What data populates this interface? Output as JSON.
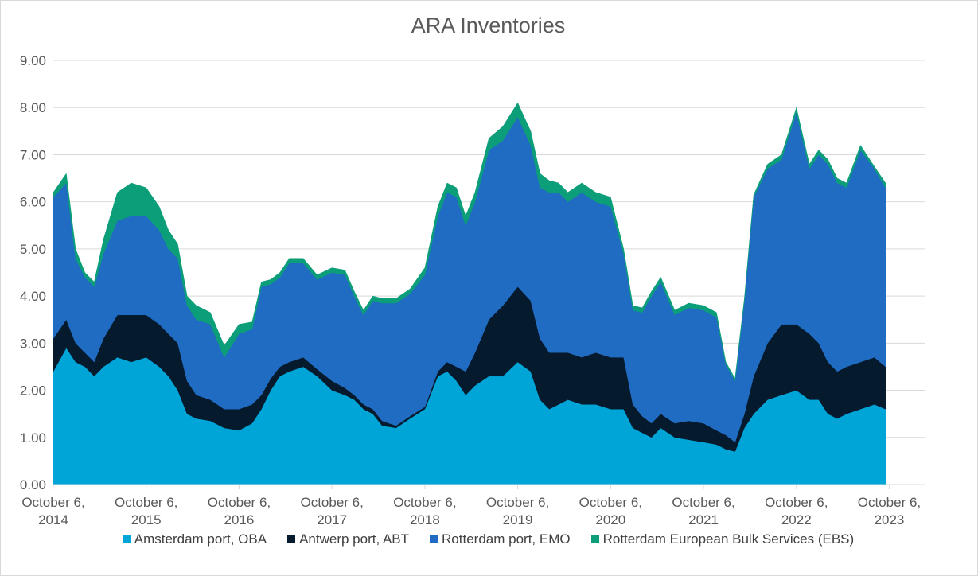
{
  "chart_data": {
    "type": "area",
    "stacked": true,
    "title": "ARA Inventories",
    "xlabel": "",
    "ylabel": "",
    "ylim": [
      0,
      9
    ],
    "yticks": [
      "0.00",
      "1.00",
      "2.00",
      "3.00",
      "4.00",
      "5.00",
      "6.00",
      "7.00",
      "8.00",
      "9.00"
    ],
    "xlim": [
      2014.76,
      2024.15
    ],
    "xticks": [
      {
        "pos": 2014.76,
        "line1": "October 6,",
        "line2": "2014"
      },
      {
        "pos": 2015.76,
        "line1": "October 6,",
        "line2": "2015"
      },
      {
        "pos": 2016.76,
        "line1": "October 6,",
        "line2": "2016"
      },
      {
        "pos": 2017.76,
        "line1": "October 6,",
        "line2": "2017"
      },
      {
        "pos": 2018.76,
        "line1": "October 6,",
        "line2": "2018"
      },
      {
        "pos": 2019.76,
        "line1": "October 6,",
        "line2": "2019"
      },
      {
        "pos": 2020.76,
        "line1": "October 6,",
        "line2": "2020"
      },
      {
        "pos": 2021.76,
        "line1": "October 6,",
        "line2": "2021"
      },
      {
        "pos": 2022.76,
        "line1": "October 6,",
        "line2": "2022"
      },
      {
        "pos": 2023.76,
        "line1": "October 6,",
        "line2": "2023"
      }
    ],
    "grid": true,
    "legend_position": "bottom",
    "x": [
      2014.76,
      2014.9,
      2015.0,
      2015.1,
      2015.2,
      2015.3,
      2015.45,
      2015.6,
      2015.76,
      2015.9,
      2016.0,
      2016.1,
      2016.2,
      2016.3,
      2016.45,
      2016.6,
      2016.76,
      2016.9,
      2017.0,
      2017.1,
      2017.2,
      2017.3,
      2017.45,
      2017.6,
      2017.76,
      2017.9,
      2018.0,
      2018.1,
      2018.2,
      2018.3,
      2018.45,
      2018.6,
      2018.76,
      2018.9,
      2019.0,
      2019.1,
      2019.2,
      2019.3,
      2019.45,
      2019.6,
      2019.76,
      2019.9,
      2020.0,
      2020.1,
      2020.2,
      2020.3,
      2020.45,
      2020.6,
      2020.76,
      2020.9,
      2021.0,
      2021.1,
      2021.2,
      2021.3,
      2021.45,
      2021.6,
      2021.76,
      2021.9,
      2022.0,
      2022.1,
      2022.2,
      2022.3,
      2022.45,
      2022.6,
      2022.76,
      2022.9,
      2023.0,
      2023.1,
      2023.2,
      2023.3,
      2023.45,
      2023.6,
      2023.72
    ],
    "series": [
      {
        "name": "Amsterdam port, OBA",
        "color": "#00a5d8",
        "values": [
          2.4,
          2.9,
          2.6,
          2.5,
          2.3,
          2.5,
          2.7,
          2.6,
          2.7,
          2.5,
          2.3,
          2.0,
          1.5,
          1.4,
          1.35,
          1.2,
          1.15,
          1.3,
          1.6,
          2.0,
          2.3,
          2.4,
          2.5,
          2.3,
          2.0,
          1.9,
          1.8,
          1.6,
          1.5,
          1.25,
          1.2,
          1.4,
          1.6,
          2.3,
          2.4,
          2.2,
          1.9,
          2.1,
          2.3,
          2.3,
          2.6,
          2.4,
          1.8,
          1.6,
          1.7,
          1.8,
          1.7,
          1.7,
          1.6,
          1.6,
          1.2,
          1.1,
          1.0,
          1.2,
          1.0,
          0.95,
          0.9,
          0.85,
          0.75,
          0.7,
          1.2,
          1.5,
          1.8,
          1.9,
          2.0,
          1.8,
          1.8,
          1.5,
          1.4,
          1.5,
          1.6,
          1.7,
          1.6
        ]
      },
      {
        "name": "Antwerp port, ABT",
        "color": "#061a2e",
        "values": [
          0.7,
          0.6,
          0.4,
          0.3,
          0.3,
          0.6,
          0.9,
          1.0,
          0.9,
          0.9,
          0.9,
          1.0,
          0.7,
          0.5,
          0.45,
          0.4,
          0.45,
          0.4,
          0.3,
          0.25,
          0.2,
          0.2,
          0.2,
          0.15,
          0.2,
          0.15,
          0.1,
          0.1,
          0.1,
          0.1,
          0.05,
          0.05,
          0.05,
          0.1,
          0.2,
          0.3,
          0.5,
          0.7,
          1.2,
          1.5,
          1.6,
          1.5,
          1.3,
          1.2,
          1.1,
          1.0,
          1.0,
          1.1,
          1.1,
          1.1,
          0.5,
          0.35,
          0.3,
          0.3,
          0.3,
          0.4,
          0.4,
          0.3,
          0.3,
          0.2,
          0.3,
          0.8,
          1.2,
          1.5,
          1.4,
          1.4,
          1.2,
          1.1,
          1.0,
          1.0,
          1.0,
          1.0,
          0.9
        ]
      },
      {
        "name": "Rotterdam port, EMO",
        "color": "#1f6cc2",
        "values": [
          3.0,
          2.9,
          1.8,
          1.6,
          1.6,
          1.8,
          2.0,
          2.1,
          2.1,
          2.0,
          1.8,
          1.8,
          1.6,
          1.6,
          1.6,
          1.1,
          1.6,
          1.6,
          2.3,
          2.0,
          1.9,
          2.1,
          2.0,
          1.9,
          2.3,
          2.4,
          2.1,
          1.9,
          2.3,
          2.5,
          2.6,
          2.6,
          2.8,
          3.3,
          3.6,
          3.6,
          3.1,
          3.2,
          3.6,
          3.5,
          3.6,
          3.3,
          3.2,
          3.4,
          3.4,
          3.2,
          3.5,
          3.2,
          3.2,
          2.2,
          2.0,
          2.2,
          2.7,
          2.8,
          2.3,
          2.4,
          2.4,
          2.4,
          1.5,
          1.3,
          2.4,
          3.8,
          3.7,
          3.5,
          4.5,
          3.5,
          4.0,
          4.2,
          4.0,
          3.8,
          4.5,
          4.0,
          3.8
        ]
      },
      {
        "name": "Rotterdam European Bulk Services (EBS)",
        "color": "#0b9e78",
        "values": [
          0.1,
          0.2,
          0.2,
          0.1,
          0.1,
          0.3,
          0.6,
          0.7,
          0.6,
          0.5,
          0.4,
          0.3,
          0.2,
          0.3,
          0.25,
          0.25,
          0.2,
          0.15,
          0.1,
          0.1,
          0.1,
          0.1,
          0.1,
          0.1,
          0.1,
          0.1,
          0.1,
          0.1,
          0.1,
          0.1,
          0.1,
          0.1,
          0.15,
          0.2,
          0.2,
          0.2,
          0.2,
          0.2,
          0.25,
          0.3,
          0.3,
          0.3,
          0.3,
          0.25,
          0.2,
          0.2,
          0.2,
          0.2,
          0.2,
          0.1,
          0.1,
          0.1,
          0.1,
          0.1,
          0.1,
          0.1,
          0.1,
          0.1,
          0.05,
          0.05,
          0.05,
          0.05,
          0.1,
          0.1,
          0.1,
          0.1,
          0.1,
          0.1,
          0.1,
          0.1,
          0.1,
          0.05,
          0.1
        ]
      }
    ]
  }
}
